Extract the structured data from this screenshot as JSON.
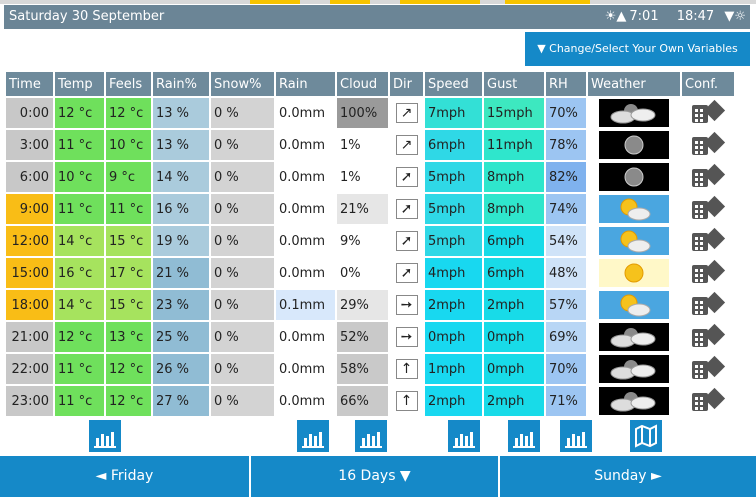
{
  "header": {
    "date": "Saturday 30 September",
    "sun_icon": "sunrise-icon",
    "sunrise_time": "7:01",
    "sunset_time": "18:47",
    "sunset_icon": "sunset-icon"
  },
  "variables_button": "▼ Change/Select Your Own Variables",
  "columns": [
    "Time",
    "Temp",
    "Feels",
    "Rain%",
    "Snow%",
    "Rain",
    "Cloud",
    "Dir",
    "Speed",
    "Gust",
    "RH",
    "Weather",
    "Conf."
  ],
  "rows": [
    {
      "time": "0:00",
      "temp": "12 °c",
      "feels": "12 °c",
      "rain_pct": "13 %",
      "snow_pct": "0 %",
      "rain": "0.0mm",
      "cloud": "100%",
      "dir": "↗",
      "speed": "7mph",
      "gust": "15mph",
      "rh": "70%",
      "weather": "cloudy-night-icon"
    },
    {
      "time": "3:00",
      "temp": "11 °c",
      "feels": "10 °c",
      "rain_pct": "13 %",
      "snow_pct": "0 %",
      "rain": "0.0mm",
      "cloud": "1%",
      "dir": "↗",
      "speed": "6mph",
      "gust": "11mph",
      "rh": "78%",
      "weather": "clear-night-icon"
    },
    {
      "time": "6:00",
      "temp": "10 °c",
      "feels": "9 °c",
      "rain_pct": "14 %",
      "snow_pct": "0 %",
      "rain": "0.0mm",
      "cloud": "1%",
      "dir": "➚",
      "speed": "5mph",
      "gust": "8mph",
      "rh": "82%",
      "weather": "clear-night-icon"
    },
    {
      "time": "9:00",
      "temp": "11 °c",
      "feels": "11 °c",
      "rain_pct": "16 %",
      "snow_pct": "0 %",
      "rain": "0.0mm",
      "cloud": "21%",
      "dir": "➚",
      "speed": "5mph",
      "gust": "8mph",
      "rh": "74%",
      "weather": "partly-cloudy-day-icon"
    },
    {
      "time": "12:00",
      "temp": "14 °c",
      "feels": "15 °c",
      "rain_pct": "19 %",
      "snow_pct": "0 %",
      "rain": "0.0mm",
      "cloud": "9%",
      "dir": "➚",
      "speed": "5mph",
      "gust": "6mph",
      "rh": "54%",
      "weather": "partly-cloudy-day-icon"
    },
    {
      "time": "15:00",
      "temp": "16 °c",
      "feels": "17 °c",
      "rain_pct": "21 %",
      "snow_pct": "0 %",
      "rain": "0.0mm",
      "cloud": "0%",
      "dir": "➚",
      "speed": "4mph",
      "gust": "6mph",
      "rh": "48%",
      "weather": "sunny-icon"
    },
    {
      "time": "18:00",
      "temp": "14 °c",
      "feels": "15 °c",
      "rain_pct": "23 %",
      "snow_pct": "0 %",
      "rain": "0.1mm",
      "cloud": "29%",
      "dir": "➙",
      "speed": "2mph",
      "gust": "2mph",
      "rh": "57%",
      "weather": "partly-cloudy-day-icon"
    },
    {
      "time": "21:00",
      "temp": "12 °c",
      "feels": "13 °c",
      "rain_pct": "25 %",
      "snow_pct": "0 %",
      "rain": "0.0mm",
      "cloud": "52%",
      "dir": "➙",
      "speed": "0mph",
      "gust": "0mph",
      "rh": "69%",
      "weather": "cloudy-night-icon"
    },
    {
      "time": "22:00",
      "temp": "11 °c",
      "feels": "12 °c",
      "rain_pct": "26 %",
      "snow_pct": "0 %",
      "rain": "0.0mm",
      "cloud": "58%",
      "dir": "↑",
      "speed": "1mph",
      "gust": "0mph",
      "rh": "70%",
      "weather": "cloudy-night-icon"
    },
    {
      "time": "23:00",
      "temp": "11 °c",
      "feels": "12 °c",
      "rain_pct": "27 %",
      "snow_pct": "0 %",
      "rain": "0.0mm",
      "cloud": "66%",
      "dir": "↑",
      "speed": "2mph",
      "gust": "2mph",
      "rh": "71%",
      "weather": "cloudy-night-icon"
    }
  ],
  "chart_buttons_icon": "bar-chart-icon",
  "map_button_icon": "map-icon",
  "nav": {
    "prev": "◄ Friday",
    "range": "16 Days ▼",
    "next": "Sunday ►"
  },
  "colors": {
    "header_bar": "#6b8596",
    "accent_blue": "#1589c8",
    "daytime_orange": "#f9bd16",
    "night_gray": "#c8c8c8"
  }
}
